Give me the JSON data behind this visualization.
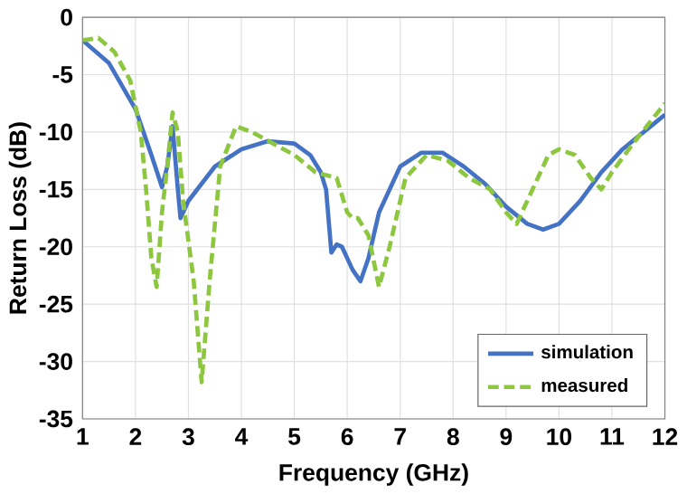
{
  "chart_data": {
    "type": "line",
    "xlabel": "Frequency (GHz)",
    "ylabel": "Return Loss (dB)",
    "xlim": [
      1,
      12
    ],
    "ylim": [
      -35,
      0
    ],
    "xticks": [
      1,
      2,
      3,
      4,
      5,
      6,
      7,
      8,
      9,
      10,
      11,
      12
    ],
    "yticks": [
      -35,
      -30,
      -25,
      -20,
      -15,
      -10,
      -5,
      0
    ],
    "grid": true,
    "legend": "bottom right",
    "series": [
      {
        "name": "simulation",
        "color": "#4472c4",
        "line_style": "solid",
        "x": [
          1,
          1.5,
          2,
          2.3,
          2.5,
          2.6,
          2.7,
          2.8,
          2.85,
          3,
          3.5,
          4,
          4.5,
          5,
          5.3,
          5.5,
          5.6,
          5.7,
          5.8,
          5.9,
          6.1,
          6.25,
          6.4,
          6.6,
          7,
          7.4,
          7.8,
          8.2,
          8.6,
          9,
          9.4,
          9.7,
          10,
          10.4,
          10.8,
          11.2,
          11.6,
          12
        ],
        "values": [
          -2,
          -4,
          -8,
          -12,
          -14.8,
          -13,
          -9.5,
          -15,
          -17.5,
          -16,
          -13,
          -11.5,
          -10.8,
          -11,
          -12,
          -13.5,
          -15,
          -20.5,
          -19.8,
          -20,
          -22,
          -23,
          -21,
          -17,
          -13,
          -11.8,
          -11.8,
          -13,
          -14.5,
          -16.5,
          -18,
          -18.5,
          -18,
          -16,
          -13.5,
          -11.5,
          -10,
          -8.5
        ]
      },
      {
        "name": "measured",
        "color": "#8dc63f",
        "line_style": "dashed",
        "x": [
          1,
          1.3,
          1.6,
          1.9,
          2.1,
          2.2,
          2.3,
          2.4,
          2.5,
          2.6,
          2.7,
          2.8,
          2.9,
          3.1,
          3.25,
          3.4,
          3.6,
          3.9,
          4.2,
          4.6,
          5,
          5.4,
          5.8,
          6,
          6.1,
          6.2,
          6.4,
          6.6,
          6.8,
          7.1,
          7.5,
          7.9,
          8.3,
          8.7,
          9,
          9.2,
          9.5,
          9.8,
          10,
          10.3,
          10.6,
          10.8,
          11,
          11.4,
          12
        ],
        "values": [
          -2,
          -1.8,
          -3,
          -5.5,
          -10,
          -15,
          -21,
          -23.5,
          -17,
          -13,
          -8.3,
          -10,
          -16,
          -23,
          -31.8,
          -23,
          -13,
          -9.5,
          -10,
          -11,
          -12,
          -13.5,
          -14,
          -17,
          -17.5,
          -17.5,
          -19,
          -23.5,
          -20,
          -14,
          -12,
          -12.5,
          -14,
          -15,
          -17,
          -18,
          -15,
          -12,
          -11.5,
          -12,
          -14,
          -15,
          -13.5,
          -11,
          -7.5
        ]
      }
    ]
  }
}
